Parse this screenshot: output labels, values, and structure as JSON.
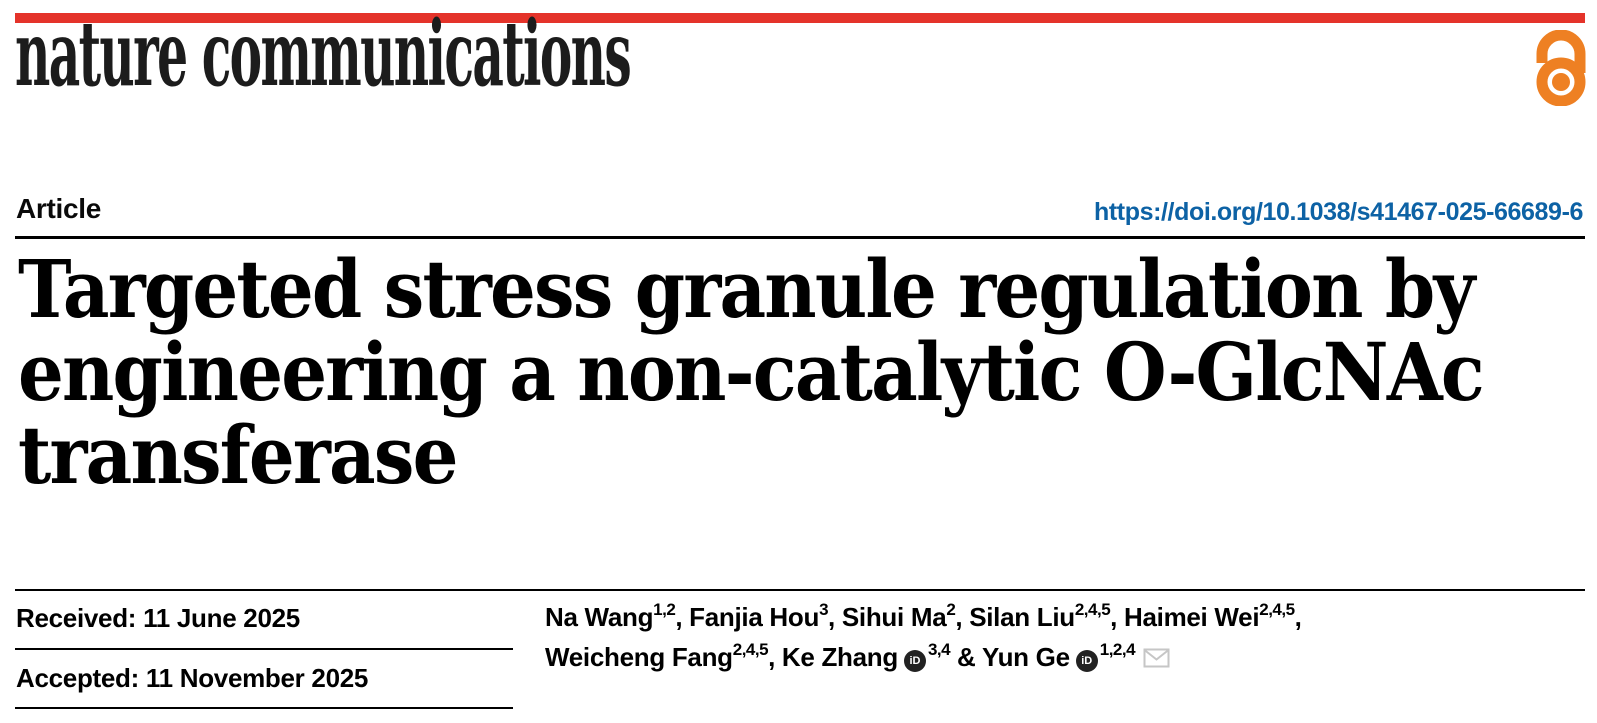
{
  "masthead": {
    "journal_name": "nature communications",
    "bar_color": "#e4332a",
    "open_access_color": "#ee8023"
  },
  "header": {
    "article_type": "Article",
    "doi": "https://doi.org/10.1038/s41467-025-66689-6",
    "doi_color": "#0d62a5"
  },
  "title_lines": [
    "Targeted stress granule regulation by",
    "engineering a non-catalytic O-GlcNAc",
    "transferase"
  ],
  "meta": {
    "received": "Received: 11 June 2025",
    "accepted": "Accepted: 11 November 2025"
  },
  "authors": {
    "orcid_label": "iD",
    "lines": [
      [
        {
          "text": "Na Wang"
        },
        {
          "sup": "1,2"
        },
        {
          "text": ", Fanjia Hou"
        },
        {
          "sup": "3"
        },
        {
          "text": ", Sihui Ma"
        },
        {
          "sup": "2"
        },
        {
          "text": ", Silan Liu"
        },
        {
          "sup": "2,4,5"
        },
        {
          "text": ", Haimei Wei"
        },
        {
          "sup": "2,4,5"
        },
        {
          "text": ","
        }
      ],
      [
        {
          "text": "Weicheng Fang"
        },
        {
          "sup": "2,4,5"
        },
        {
          "text": ", Ke Zhang"
        },
        {
          "icon": "orcid"
        },
        {
          "sup": "3,4"
        },
        {
          "text": " & Yun Ge"
        },
        {
          "icon": "orcid"
        },
        {
          "sup": "1,2,4"
        },
        {
          "icon": "envelope"
        }
      ]
    ]
  }
}
